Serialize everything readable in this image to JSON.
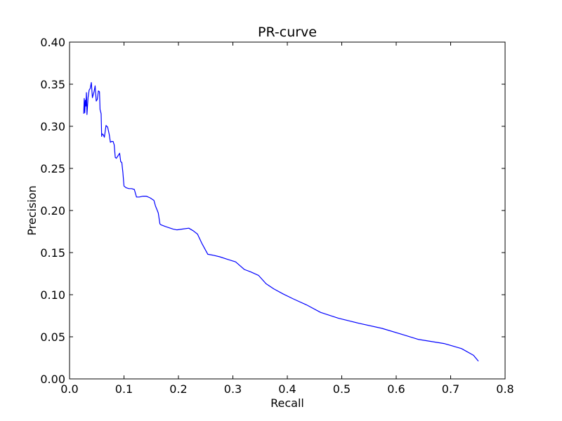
{
  "chart_data": {
    "type": "line",
    "title": "PR-curve",
    "xlabel": "Recall",
    "ylabel": "Precision",
    "xlim": [
      0.0,
      0.8
    ],
    "ylim": [
      0.0,
      0.4
    ],
    "x_ticks": [
      "0.0",
      "0.1",
      "0.2",
      "0.3",
      "0.4",
      "0.5",
      "0.6",
      "0.7",
      "0.8"
    ],
    "y_ticks": [
      "0.00",
      "0.05",
      "0.10",
      "0.15",
      "0.20",
      "0.25",
      "0.30",
      "0.35",
      "0.40"
    ],
    "grid": false,
    "series": [
      {
        "color": "#0000ff",
        "x": [
          0.026,
          0.027,
          0.028,
          0.029,
          0.03,
          0.031,
          0.032,
          0.034,
          0.036,
          0.038,
          0.04,
          0.042,
          0.045,
          0.047,
          0.049,
          0.051,
          0.053,
          0.055,
          0.056,
          0.058,
          0.059,
          0.06,
          0.062,
          0.064,
          0.067,
          0.07,
          0.073,
          0.075,
          0.077,
          0.08,
          0.082,
          0.084,
          0.086,
          0.089,
          0.092,
          0.094,
          0.096,
          0.098,
          0.1,
          0.104,
          0.109,
          0.114,
          0.119,
          0.123,
          0.128,
          0.135,
          0.141,
          0.148,
          0.155,
          0.158,
          0.16,
          0.163,
          0.166,
          0.168,
          0.176,
          0.19,
          0.197,
          0.208,
          0.219,
          0.227,
          0.235,
          0.243,
          0.254,
          0.263,
          0.276,
          0.29,
          0.305,
          0.321,
          0.333,
          0.347,
          0.361,
          0.375,
          0.392,
          0.411,
          0.435,
          0.461,
          0.494,
          0.532,
          0.574,
          0.615,
          0.64,
          0.688,
          0.72,
          0.742,
          0.751
        ],
        "y": [
          0.315,
          0.333,
          0.316,
          0.331,
          0.324,
          0.34,
          0.314,
          0.334,
          0.343,
          0.345,
          0.352,
          0.334,
          0.341,
          0.348,
          0.33,
          0.332,
          0.342,
          0.341,
          0.32,
          0.315,
          0.288,
          0.291,
          0.29,
          0.287,
          0.301,
          0.299,
          0.29,
          0.281,
          0.282,
          0.282,
          0.278,
          0.263,
          0.262,
          0.265,
          0.268,
          0.258,
          0.257,
          0.245,
          0.229,
          0.227,
          0.226,
          0.226,
          0.225,
          0.216,
          0.216,
          0.217,
          0.217,
          0.215,
          0.212,
          0.205,
          0.202,
          0.197,
          0.184,
          0.183,
          0.181,
          0.178,
          0.177,
          0.178,
          0.179,
          0.176,
          0.172,
          0.161,
          0.148,
          0.147,
          0.145,
          0.142,
          0.139,
          0.13,
          0.127,
          0.123,
          0.113,
          0.107,
          0.101,
          0.095,
          0.088,
          0.079,
          0.072,
          0.066,
          0.06,
          0.052,
          0.047,
          0.042,
          0.036,
          0.028,
          0.021
        ]
      }
    ]
  }
}
